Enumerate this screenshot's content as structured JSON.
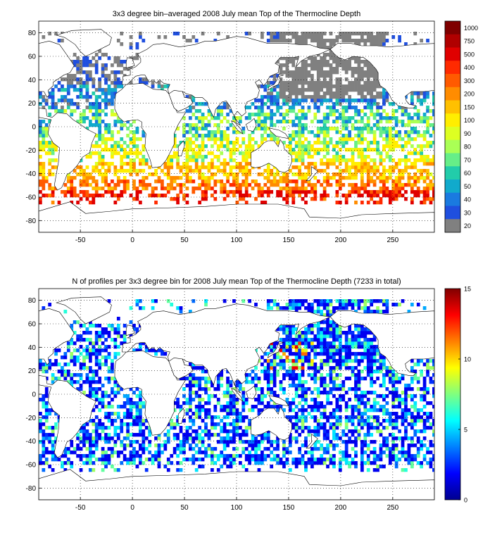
{
  "chart_data": [
    {
      "type": "heatmap",
      "title": "3x3 degree bin–averaged 2008 July mean Top of the Thermocline Depth",
      "xlabel": "",
      "ylabel": "",
      "xlim": [
        -90,
        290
      ],
      "ylim": [
        -90,
        90
      ],
      "x_ticks": [
        -50,
        0,
        50,
        100,
        150,
        200,
        250
      ],
      "y_ticks": [
        80,
        60,
        40,
        20,
        0,
        -20,
        -40,
        -60,
        -80
      ],
      "grid": true,
      "grid_style": "dotted",
      "bin_size_deg": 3,
      "colorbar": {
        "labels": [
          "1000",
          "750",
          "500",
          "400",
          "300",
          "200",
          "150",
          "100",
          "90",
          "80",
          "70",
          "60",
          "50",
          "40",
          "30",
          "20"
        ],
        "colors": [
          "#7f0000",
          "#b00000",
          "#e00000",
          "#ff2a00",
          "#ff5a00",
          "#ff8c00",
          "#ffc000",
          "#ffee00",
          "#ddff22",
          "#aaff55",
          "#66ee88",
          "#22ccaa",
          "#11aacc",
          "#1a7ae0",
          "#1f4fdf",
          "#808080"
        ]
      },
      "land_color": "#ffffff",
      "coastline_color": "#000000"
    },
    {
      "type": "heatmap",
      "title": "N of profiles per 3x3 degree bin for 2008 July mean Top of the Thermocline Depth  (7233 in total)",
      "xlabel": "",
      "ylabel": "",
      "xlim": [
        -90,
        290
      ],
      "ylim": [
        -90,
        90
      ],
      "x_ticks": [
        -50,
        0,
        50,
        100,
        150,
        200,
        250
      ],
      "y_ticks": [
        80,
        60,
        40,
        20,
        0,
        -20,
        -40,
        -60,
        -80
      ],
      "grid": true,
      "grid_style": "dotted",
      "bin_size_deg": 3,
      "total_profiles": 7233,
      "colorbar": {
        "min": 0,
        "max": 15,
        "ticks": [
          0,
          5,
          10,
          15
        ],
        "colormap": "jet"
      },
      "land_color": "#ffffff",
      "coastline_color": "#000000"
    }
  ]
}
